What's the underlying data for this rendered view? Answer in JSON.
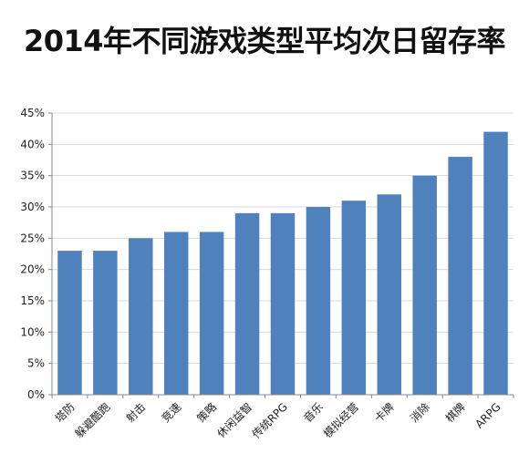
{
  "chart_data": {
    "type": "bar",
    "title": "2014年不同游戏类型平均次日留存率",
    "xlabel": "",
    "ylabel": "",
    "categories": [
      "塔防",
      "躲避酷跑",
      "射击",
      "竞速",
      "策略",
      "休闲益智",
      "传统RPG",
      "音乐",
      "模拟经营",
      "卡牌",
      "消除",
      "棋牌",
      "ARPG"
    ],
    "values": [
      23,
      23,
      25,
      26,
      26,
      29,
      29,
      30,
      31,
      32,
      35,
      38,
      42
    ],
    "value_format": "percent",
    "ylim": [
      0,
      45
    ],
    "y_ticks": [
      "0%",
      "5%",
      "10%",
      "15%",
      "20%",
      "25%",
      "30%",
      "35%",
      "40%",
      "45%"
    ],
    "grid": true,
    "legend": "none",
    "bar_color": "#4F81BD"
  }
}
